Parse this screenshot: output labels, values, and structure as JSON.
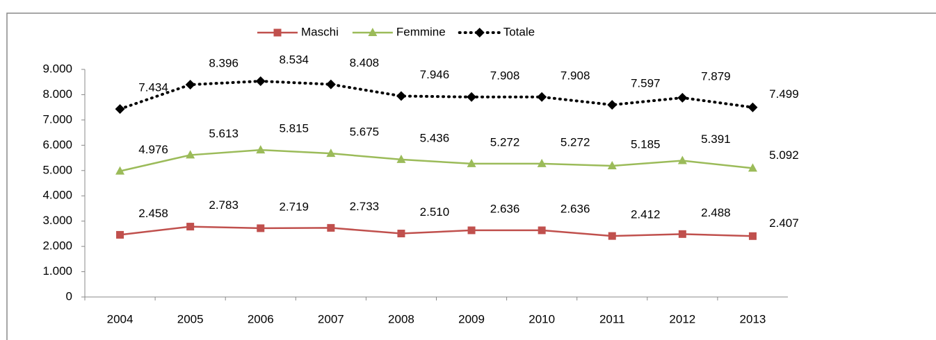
{
  "chart_data": {
    "type": "line",
    "categories": [
      "2004",
      "2005",
      "2006",
      "2007",
      "2008",
      "2009",
      "2010",
      "2011",
      "2012",
      "2013"
    ],
    "series": [
      {
        "name": "Maschi",
        "color": "#c0504d",
        "marker": "square",
        "line_style": "solid",
        "values": [
          2458,
          2783,
          2719,
          2733,
          2510,
          2636,
          2636,
          2412,
          2488,
          2407
        ],
        "value_labels": [
          "2.458",
          "2.783",
          "2.719",
          "2.733",
          "2.510",
          "2.636",
          "2.636",
          "2.412",
          "2.488",
          "2.407"
        ]
      },
      {
        "name": "Femmine",
        "color": "#9bbb59",
        "marker": "triangle",
        "line_style": "solid",
        "values": [
          4976,
          5613,
          5815,
          5675,
          5436,
          5272,
          5272,
          5185,
          5391,
          5092
        ],
        "value_labels": [
          "4.976",
          "5.613",
          "5.815",
          "5.675",
          "5.436",
          "5.272",
          "5.272",
          "5.185",
          "5.391",
          "5.092"
        ]
      },
      {
        "name": "Totale",
        "color": "#000000",
        "marker": "diamond",
        "line_style": "dotted",
        "values": [
          7434,
          8396,
          8534,
          8408,
          7946,
          7908,
          7908,
          7597,
          7879,
          7499
        ],
        "value_labels": [
          "7.434",
          "8.396",
          "8.534",
          "8.408",
          "7.946",
          "7.908",
          "7.908",
          "7.597",
          "7.879",
          "7.499"
        ]
      }
    ],
    "ylim": [
      0,
      9000
    ],
    "yticks": [
      0,
      {
        "value": 1000,
        "label": "1.000"
      },
      {
        "value": 2000,
        "label": "2.000"
      },
      {
        "value": 3000,
        "label": "3.000"
      },
      {
        "value": 4000,
        "label": "4.000"
      },
      {
        "value": 5000,
        "label": "5.000"
      },
      {
        "value": 6000,
        "label": "6.000"
      },
      {
        "value": 7000,
        "label": "7.000"
      },
      {
        "value": 8000,
        "label": "8.000"
      },
      {
        "value": 9000,
        "label": "9.000"
      }
    ],
    "grid": false,
    "legend": "top"
  }
}
